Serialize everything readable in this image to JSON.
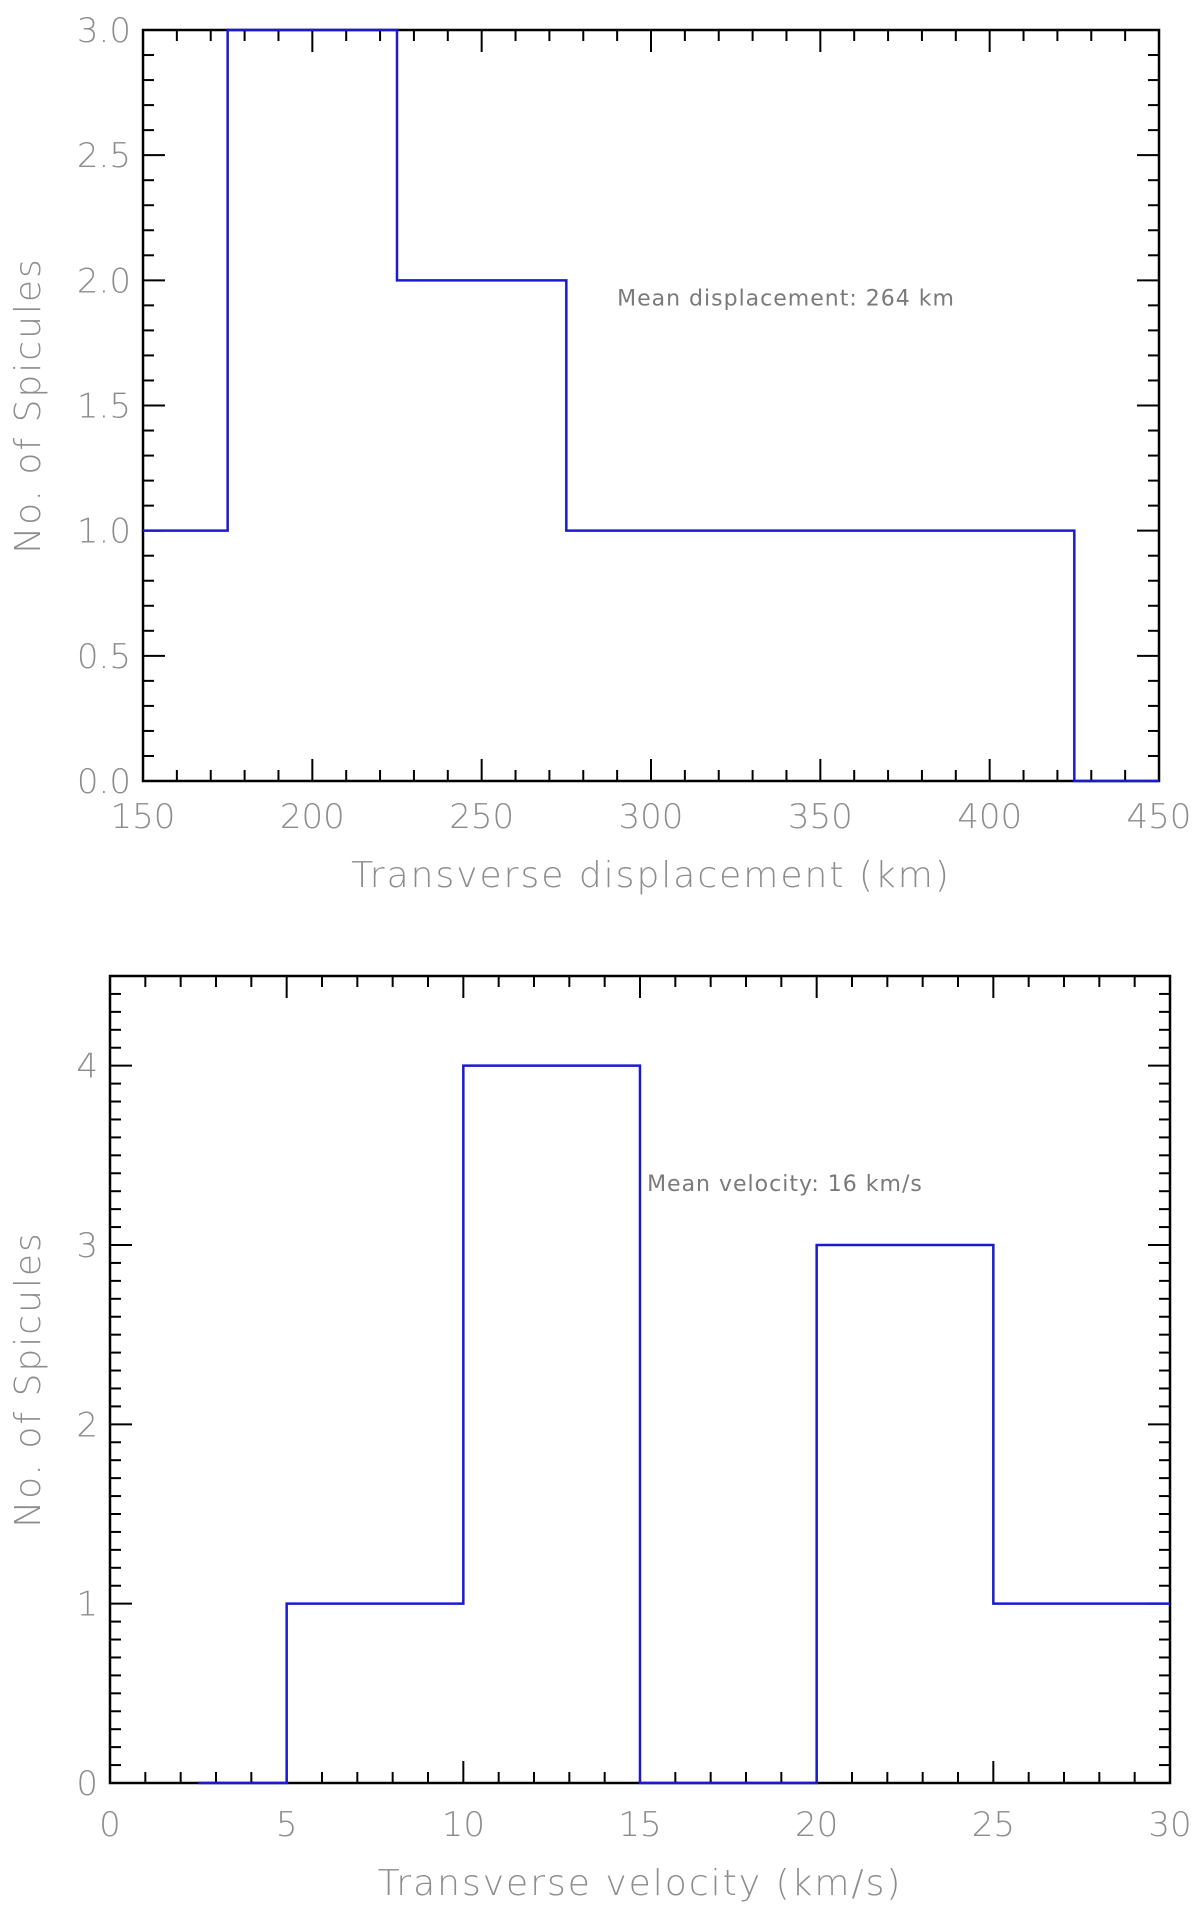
{
  "chart_data": [
    {
      "type": "histogram",
      "bins": [
        {
          "x0": 150,
          "x1": 175,
          "count": 1
        },
        {
          "x0": 175,
          "x1": 225,
          "count": 3
        },
        {
          "x0": 225,
          "x1": 275,
          "count": 2
        },
        {
          "x0": 275,
          "x1": 425,
          "count": 1
        },
        {
          "x0": 425,
          "x1": 450,
          "count": 0
        }
      ],
      "xlabel": "Transverse displacement (km)",
      "ylabel": "No. of Spicules",
      "xlim": [
        150,
        450
      ],
      "ylim": [
        0,
        3.0
      ],
      "xticks": [
        "150",
        "200",
        "250",
        "300",
        "350",
        "400",
        "450"
      ],
      "yticks": [
        "0.0",
        "0.5",
        "1.0",
        "1.5",
        "2.0",
        "2.5",
        "3.0"
      ],
      "annotation": {
        "text": "Mean displacement: 264 km",
        "x": 290,
        "y": 1.9
      },
      "grid": false,
      "color": "#1a1ad0"
    },
    {
      "type": "histogram",
      "bins": [
        {
          "x0": 2.5,
          "x1": 5,
          "count": 0
        },
        {
          "x0": 5,
          "x1": 10,
          "count": 1
        },
        {
          "x0": 10,
          "x1": 15,
          "count": 4
        },
        {
          "x0": 15,
          "x1": 20,
          "count": 0
        },
        {
          "x0": 20,
          "x1": 25,
          "count": 3
        },
        {
          "x0": 25,
          "x1": 30,
          "count": 1
        }
      ],
      "xlabel": "Transverse velocity (km/s)",
      "ylabel": "No. of Spicules",
      "xlim": [
        0,
        30
      ],
      "ylim": [
        0,
        4.5
      ],
      "xticks": [
        "0",
        "5",
        "10",
        "15",
        "20",
        "25",
        "30"
      ],
      "yticks": [
        "0",
        "1",
        "2",
        "3",
        "4"
      ],
      "annotation": {
        "text": "Mean velocity: 16 km/s",
        "x": 15.2,
        "y": 3.3
      },
      "grid": false,
      "color": "#1a1ad0"
    }
  ]
}
